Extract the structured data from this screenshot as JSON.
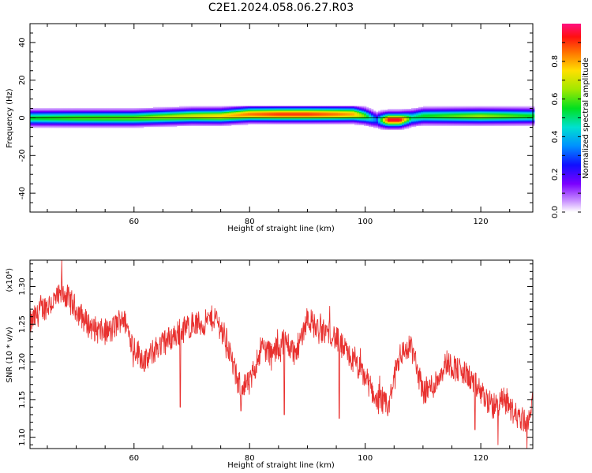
{
  "title": "C2E1.2024.058.06.27.R03",
  "chart_data": [
    {
      "type": "heatmap",
      "xlabel": "Height of straight line (km)",
      "ylabel": "Frequency (Hz)",
      "xlim": [
        42,
        129
      ],
      "ylim": [
        -50,
        50
      ],
      "x_ticks": [
        "60",
        "80",
        "100",
        "120"
      ],
      "y_ticks": [
        "40",
        "20",
        "0",
        "-20",
        "-40"
      ],
      "colorbar": {
        "label": "Normalized spectral amplitude",
        "range": [
          0,
          1
        ],
        "ticks": [
          "0.0",
          "0.2",
          "0.4",
          "0.6",
          "0.8"
        ]
      },
      "ridge": {
        "x": [
          42,
          50,
          60,
          70,
          75,
          80,
          85,
          90,
          95,
          98,
          100,
          102,
          104,
          106,
          108,
          110,
          115,
          120,
          125,
          129
        ],
        "frequency_hz": [
          0,
          0,
          0,
          1,
          1,
          2,
          2,
          2,
          2,
          2,
          1,
          -1,
          -1,
          -1,
          0,
          1,
          1,
          1,
          1,
          1
        ],
        "peak_amplitude": [
          0.55,
          0.6,
          0.62,
          0.7,
          0.75,
          0.85,
          0.9,
          0.9,
          0.85,
          0.8,
          0.6,
          0.3,
          0.95,
          0.95,
          0.5,
          0.55,
          0.6,
          0.65,
          0.6,
          0.55
        ]
      }
    },
    {
      "type": "line",
      "xlabel": "Height of straight line (km)",
      "ylabel": "SNR (10 * v/v)",
      "y_multiplier": "(x10⁴)",
      "xlim": [
        42,
        129
      ],
      "ylim": [
        1.085,
        1.335
      ],
      "x_ticks": [
        "60",
        "80",
        "100",
        "120"
      ],
      "y_ticks": [
        "1.10",
        "1.15",
        "1.20",
        "1.25",
        "1.30"
      ],
      "color": "#e8312f",
      "series": [
        {
          "x": [
            42,
            44,
            46,
            48,
            50,
            52,
            54,
            56,
            58,
            60,
            62,
            64,
            66,
            68,
            70,
            72,
            74,
            76,
            78,
            80,
            82,
            84,
            86,
            88,
            90,
            92,
            94,
            96,
            98,
            100,
            102,
            104,
            106,
            108,
            110,
            112,
            114,
            116,
            118,
            120,
            122,
            124,
            126,
            128,
            129
          ],
          "y": [
            1.25,
            1.27,
            1.28,
            1.29,
            1.27,
            1.25,
            1.24,
            1.24,
            1.26,
            1.22,
            1.2,
            1.22,
            1.23,
            1.24,
            1.25,
            1.25,
            1.26,
            1.23,
            1.17,
            1.17,
            1.22,
            1.21,
            1.23,
            1.21,
            1.26,
            1.24,
            1.24,
            1.22,
            1.2,
            1.18,
            1.15,
            1.14,
            1.21,
            1.22,
            1.16,
            1.17,
            1.2,
            1.19,
            1.18,
            1.16,
            1.14,
            1.15,
            1.13,
            1.12,
            1.15
          ],
          "spikes": [
            {
              "x": 47.5,
              "y": 1.335
            },
            {
              "x": 68,
              "y": 1.14
            },
            {
              "x": 78.5,
              "y": 1.135
            },
            {
              "x": 86,
              "y": 1.13
            },
            {
              "x": 95.5,
              "y": 1.125
            },
            {
              "x": 119,
              "y": 1.11
            },
            {
              "x": 123,
              "y": 1.09
            },
            {
              "x": 128,
              "y": 1.085
            }
          ]
        }
      ]
    }
  ]
}
